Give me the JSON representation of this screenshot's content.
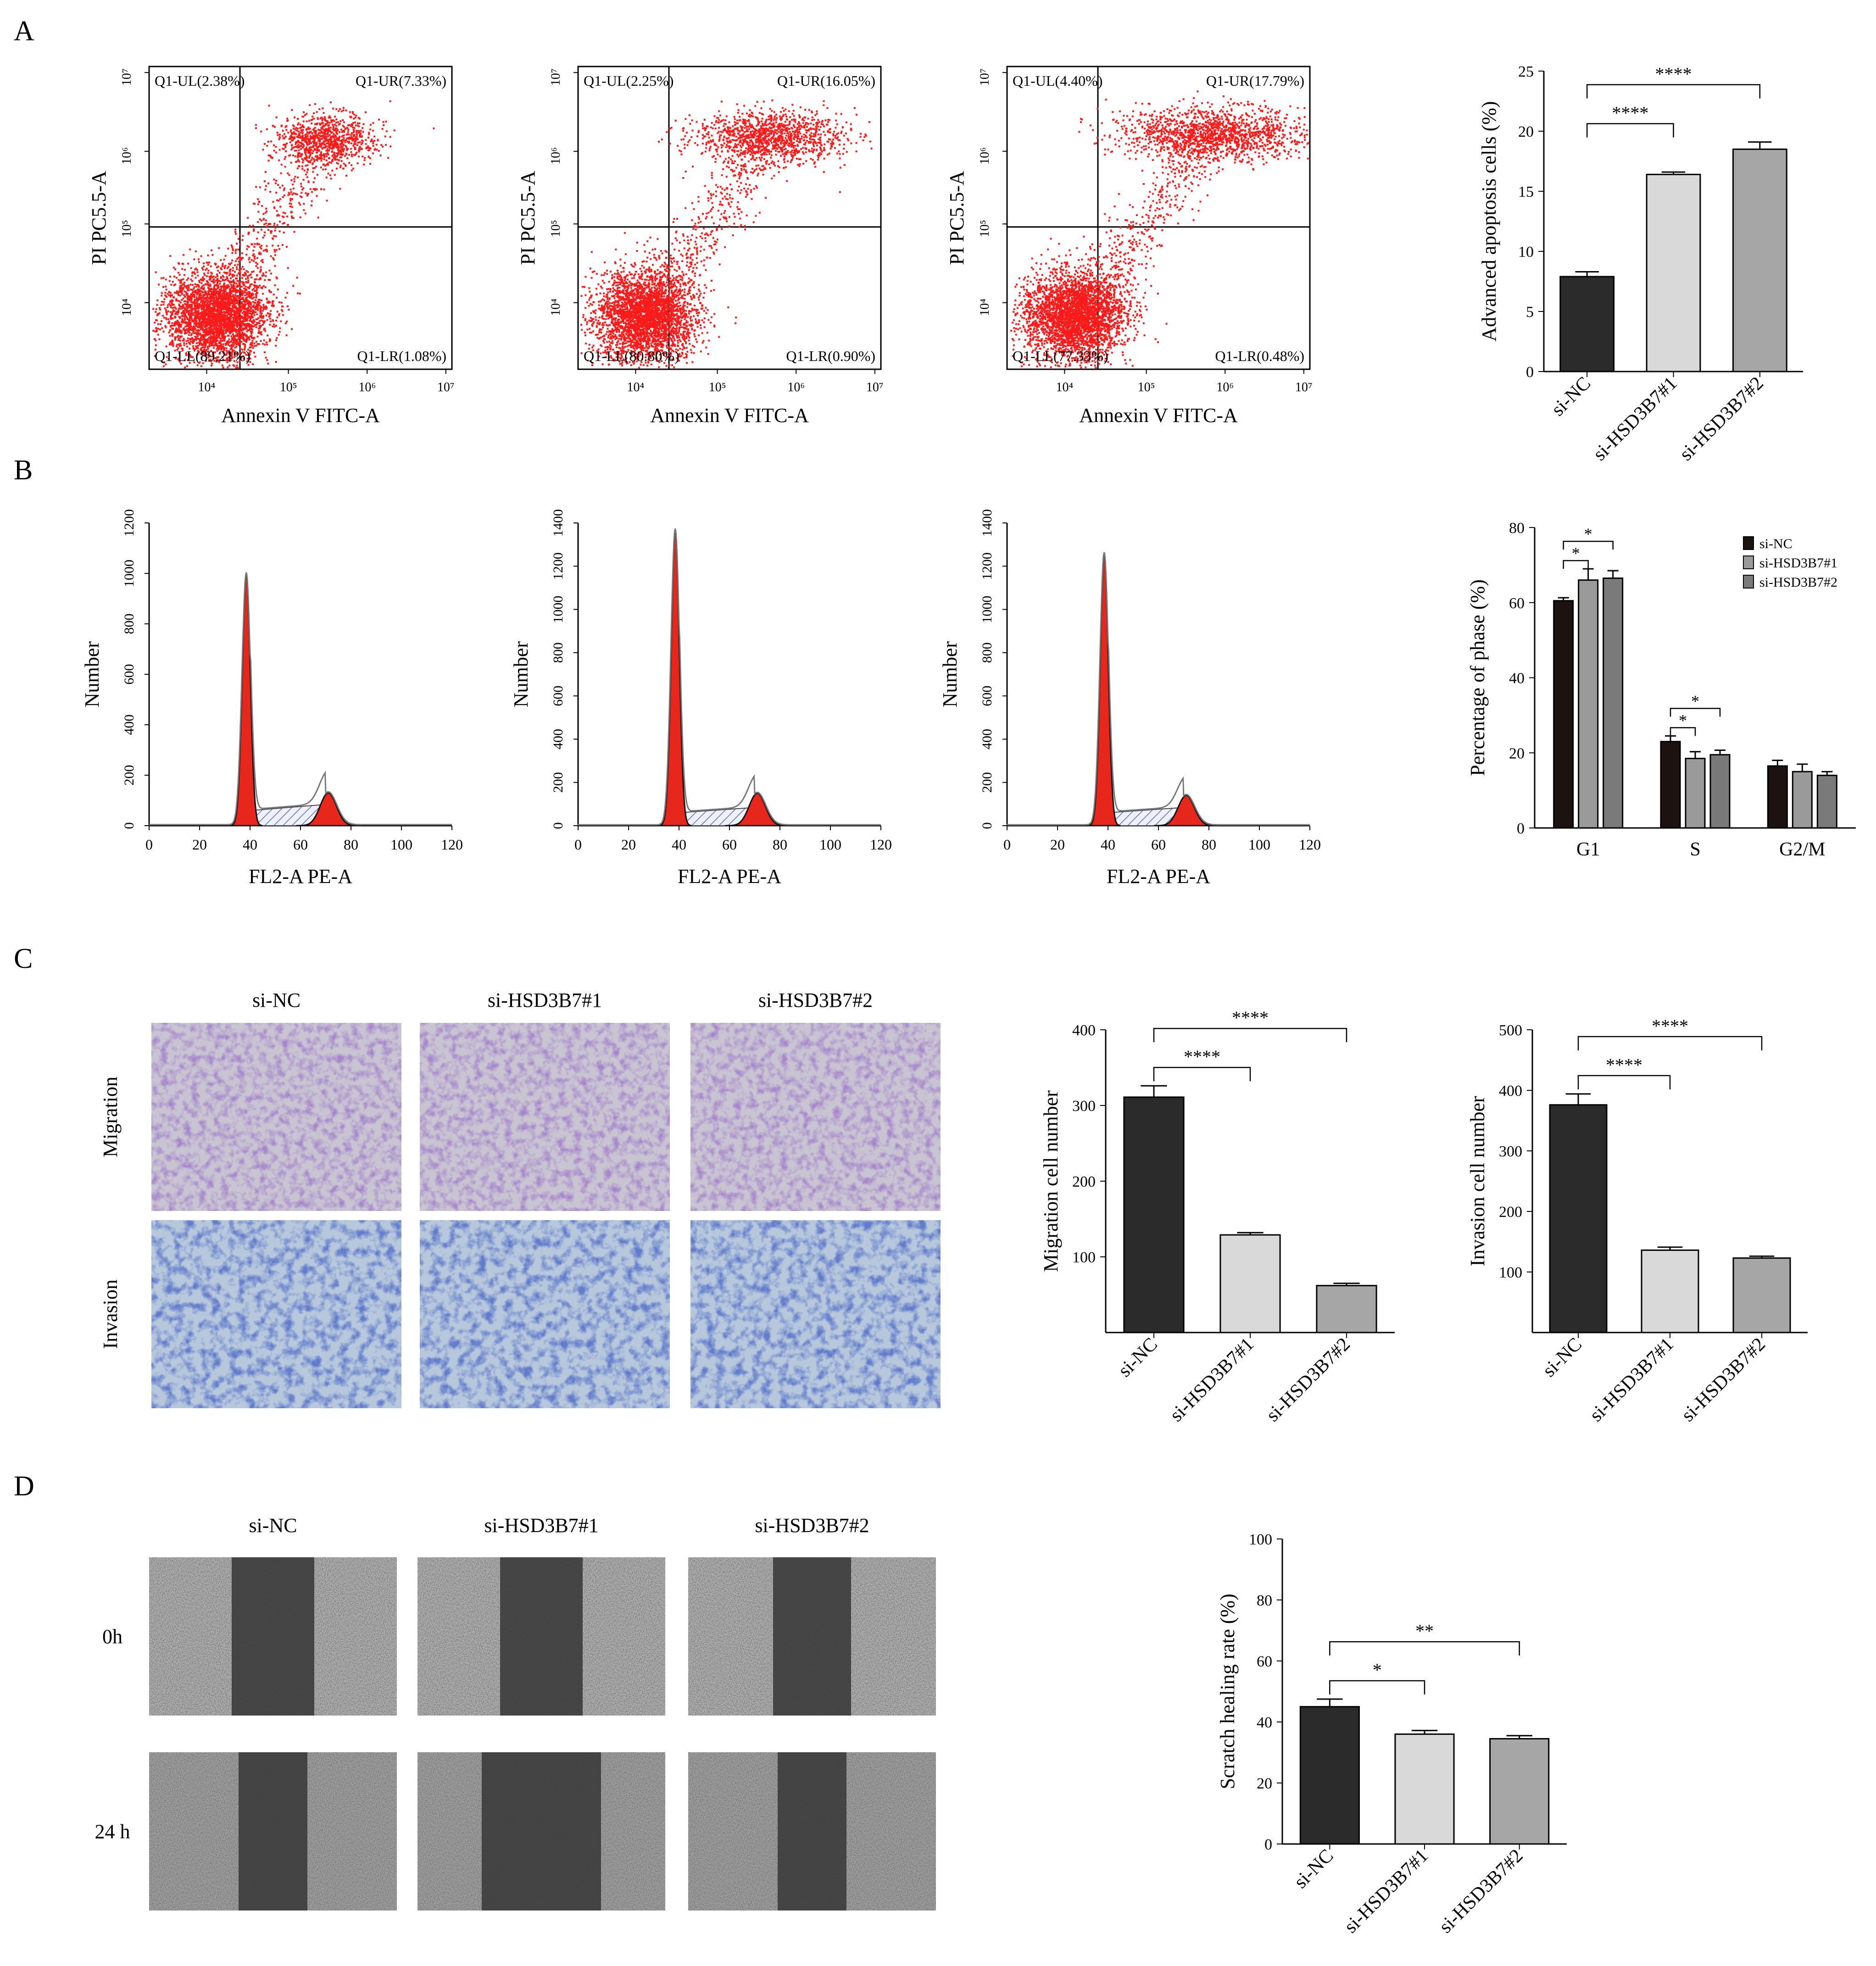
{
  "panels": [
    {
      "id": "A",
      "letter": "A"
    },
    {
      "id": "B",
      "letter": "B"
    },
    {
      "id": "C",
      "letter": "C"
    },
    {
      "id": "D",
      "letter": "D"
    }
  ],
  "colors": {
    "scatter": "#ff1a1a",
    "bar_dark": "#2b2b2b",
    "bar_light": "#d9d9d9",
    "bar_mid": "#a6a6a6",
    "cc_nc": "#1c1210",
    "cc_1": "#9a9a9a",
    "cc_2": "#7a7a7a",
    "peak": "#e8271c",
    "stain_violet": "#6b4fa0",
    "stain_blue": "#2a3d9a"
  },
  "flow_plots": [
    {
      "xlabel": "Annexin V FITC-A",
      "ylabel": "PI PC5.5-A",
      "xticks": [
        "10⁴",
        "10⁵",
        "10⁶",
        "10⁷"
      ],
      "yticks": [
        "10⁴",
        "10⁵",
        "10⁶",
        "10⁷"
      ],
      "quadrants": {
        "UL": "Q1-UL(2.38%)",
        "UR": "Q1-UR(7.33%)",
        "LL": "Q1-LL(89.21%)",
        "LR": "Q1-LR(1.08%)"
      }
    },
    {
      "xlabel": "Annexin V FITC-A",
      "ylabel": "PI PC5.5-A",
      "xticks": [
        "10⁴",
        "10⁵",
        "10⁶",
        "10⁷"
      ],
      "yticks": [
        "10⁴",
        "10⁵",
        "10⁶",
        "10⁷"
      ],
      "quadrants": {
        "UL": "Q1-UL(2.25%)",
        "UR": "Q1-UR(16.05%)",
        "LL": "Q1-LL(80.80%)",
        "LR": "Q1-LR(0.90%)"
      }
    },
    {
      "xlabel": "Annexin V FITC-A",
      "ylabel": "PI PC5.5-A",
      "xticks": [
        "10⁴",
        "10⁵",
        "10⁶",
        "10⁷"
      ],
      "yticks": [
        "10⁴",
        "10⁵",
        "10⁶",
        "10⁷"
      ],
      "quadrants": {
        "UL": "Q1-UL(4.40%)",
        "UR": "Q1-UR(17.79%)",
        "LL": "Q1-LL(77.33%)",
        "LR": "Q1-LR(0.48%)"
      }
    }
  ],
  "histograms": [
    {
      "xlabel": "FL2-A PE-A",
      "ylabel": "Number",
      "yticks": [
        0,
        200,
        400,
        600,
        800,
        1000,
        1200
      ],
      "xticks": [
        0,
        20,
        40,
        60,
        80,
        100,
        120
      ],
      "g1_peak": 1000,
      "g2_peak": 130
    },
    {
      "xlabel": "FL2-A PE-A",
      "ylabel": "Number",
      "yticks": [
        0,
        200,
        400,
        600,
        800,
        1000,
        1200,
        1400
      ],
      "xticks": [
        0,
        20,
        40,
        60,
        80,
        100,
        120
      ],
      "g1_peak": 1370,
      "g2_peak": 150
    },
    {
      "xlabel": "FL2-A PE-A",
      "ylabel": "Number",
      "yticks": [
        0,
        200,
        400,
        600,
        800,
        1000,
        1200,
        1400
      ],
      "xticks": [
        0,
        20,
        40,
        60,
        80,
        100,
        120
      ],
      "g1_peak": 1260,
      "g2_peak": 140
    }
  ],
  "image_grids": {
    "transwell": {
      "col_labels": [
        "si-NC",
        "si-HSD3B7#1",
        "si-HSD3B7#2"
      ],
      "row_labels": [
        "Migration",
        "Invasion"
      ]
    },
    "scratch": {
      "col_labels": [
        "si-NC",
        "si-HSD3B7#1",
        "si-HSD3B7#2"
      ],
      "row_labels": [
        "0h",
        "24 h"
      ]
    }
  },
  "chart_data": [
    {
      "id": "apoptosis",
      "type": "bar",
      "categories": [
        "si-NC",
        "si-HSD3B7#1",
        "si-HSD3B7#2"
      ],
      "values": [
        7.9,
        16.4,
        18.5
      ],
      "errors": [
        0.4,
        0.2,
        0.6
      ],
      "ylabel": "Advanced apoptosis cells (%)",
      "ylim": [
        0,
        25
      ],
      "yticks": [
        0,
        5,
        10,
        15,
        20,
        25
      ],
      "sig": [
        {
          "from": 0,
          "to": 1,
          "label": "****"
        },
        {
          "from": 0,
          "to": 2,
          "label": "****"
        }
      ]
    },
    {
      "id": "cell_cycle",
      "type": "bar",
      "categories": [
        "G1",
        "S",
        "G2/M"
      ],
      "series": [
        {
          "name": "si-NC",
          "values": [
            60.5,
            23.0,
            16.5
          ],
          "errors": [
            0.8,
            1.5,
            1.5
          ]
        },
        {
          "name": "si-HSD3B7#1",
          "values": [
            66.0,
            18.5,
            15.0
          ],
          "errors": [
            3.0,
            1.8,
            2.0
          ]
        },
        {
          "name": "si-HSD3B7#2",
          "values": [
            66.5,
            19.5,
            14.0
          ],
          "errors": [
            2.0,
            1.2,
            1.0
          ]
        }
      ],
      "ylabel": "Percentage of phase (%)",
      "ylim": [
        0,
        80
      ],
      "yticks": [
        0,
        20,
        40,
        60,
        80
      ],
      "legend": "top-right",
      "sig": [
        {
          "group": 0,
          "from": 0,
          "to": 1,
          "label": "*"
        },
        {
          "group": 0,
          "from": 0,
          "to": 2,
          "label": "*"
        },
        {
          "group": 1,
          "from": 0,
          "to": 1,
          "label": "*"
        },
        {
          "group": 1,
          "from": 0,
          "to": 2,
          "label": "*"
        }
      ]
    },
    {
      "id": "migration",
      "type": "bar",
      "categories": [
        "si-NC",
        "si-HSD3B7#1",
        "si-HSD3B7#2"
      ],
      "values": [
        311,
        129,
        62
      ],
      "errors": [
        15,
        3,
        3
      ],
      "ylabel": "Migration cell number",
      "ylim": [
        0,
        400
      ],
      "yticks": [
        100,
        200,
        300,
        400
      ],
      "sig": [
        {
          "from": 0,
          "to": 1,
          "label": "****"
        },
        {
          "from": 0,
          "to": 2,
          "label": "****"
        }
      ]
    },
    {
      "id": "invasion",
      "type": "bar",
      "categories": [
        "si-NC",
        "si-HSD3B7#1",
        "si-HSD3B7#2"
      ],
      "values": [
        376,
        136,
        123
      ],
      "errors": [
        18,
        5,
        3
      ],
      "ylabel": "Invasion cell number",
      "ylim": [
        0,
        500
      ],
      "yticks": [
        100,
        200,
        300,
        400,
        500
      ],
      "sig": [
        {
          "from": 0,
          "to": 1,
          "label": "****"
        },
        {
          "from": 0,
          "to": 2,
          "label": "****"
        }
      ]
    },
    {
      "id": "scratch",
      "type": "bar",
      "categories": [
        "si-NC",
        "si-HSD3B7#1",
        "si-HSD3B7#2"
      ],
      "values": [
        45,
        36,
        34.5
      ],
      "errors": [
        2.5,
        1.2,
        1.0
      ],
      "ylabel": "Scratch healing rate (%)",
      "ylim": [
        0,
        100
      ],
      "yticks": [
        0,
        20,
        40,
        60,
        80,
        100
      ],
      "sig": [
        {
          "from": 0,
          "to": 1,
          "label": "*"
        },
        {
          "from": 0,
          "to": 2,
          "label": "**"
        }
      ]
    }
  ]
}
